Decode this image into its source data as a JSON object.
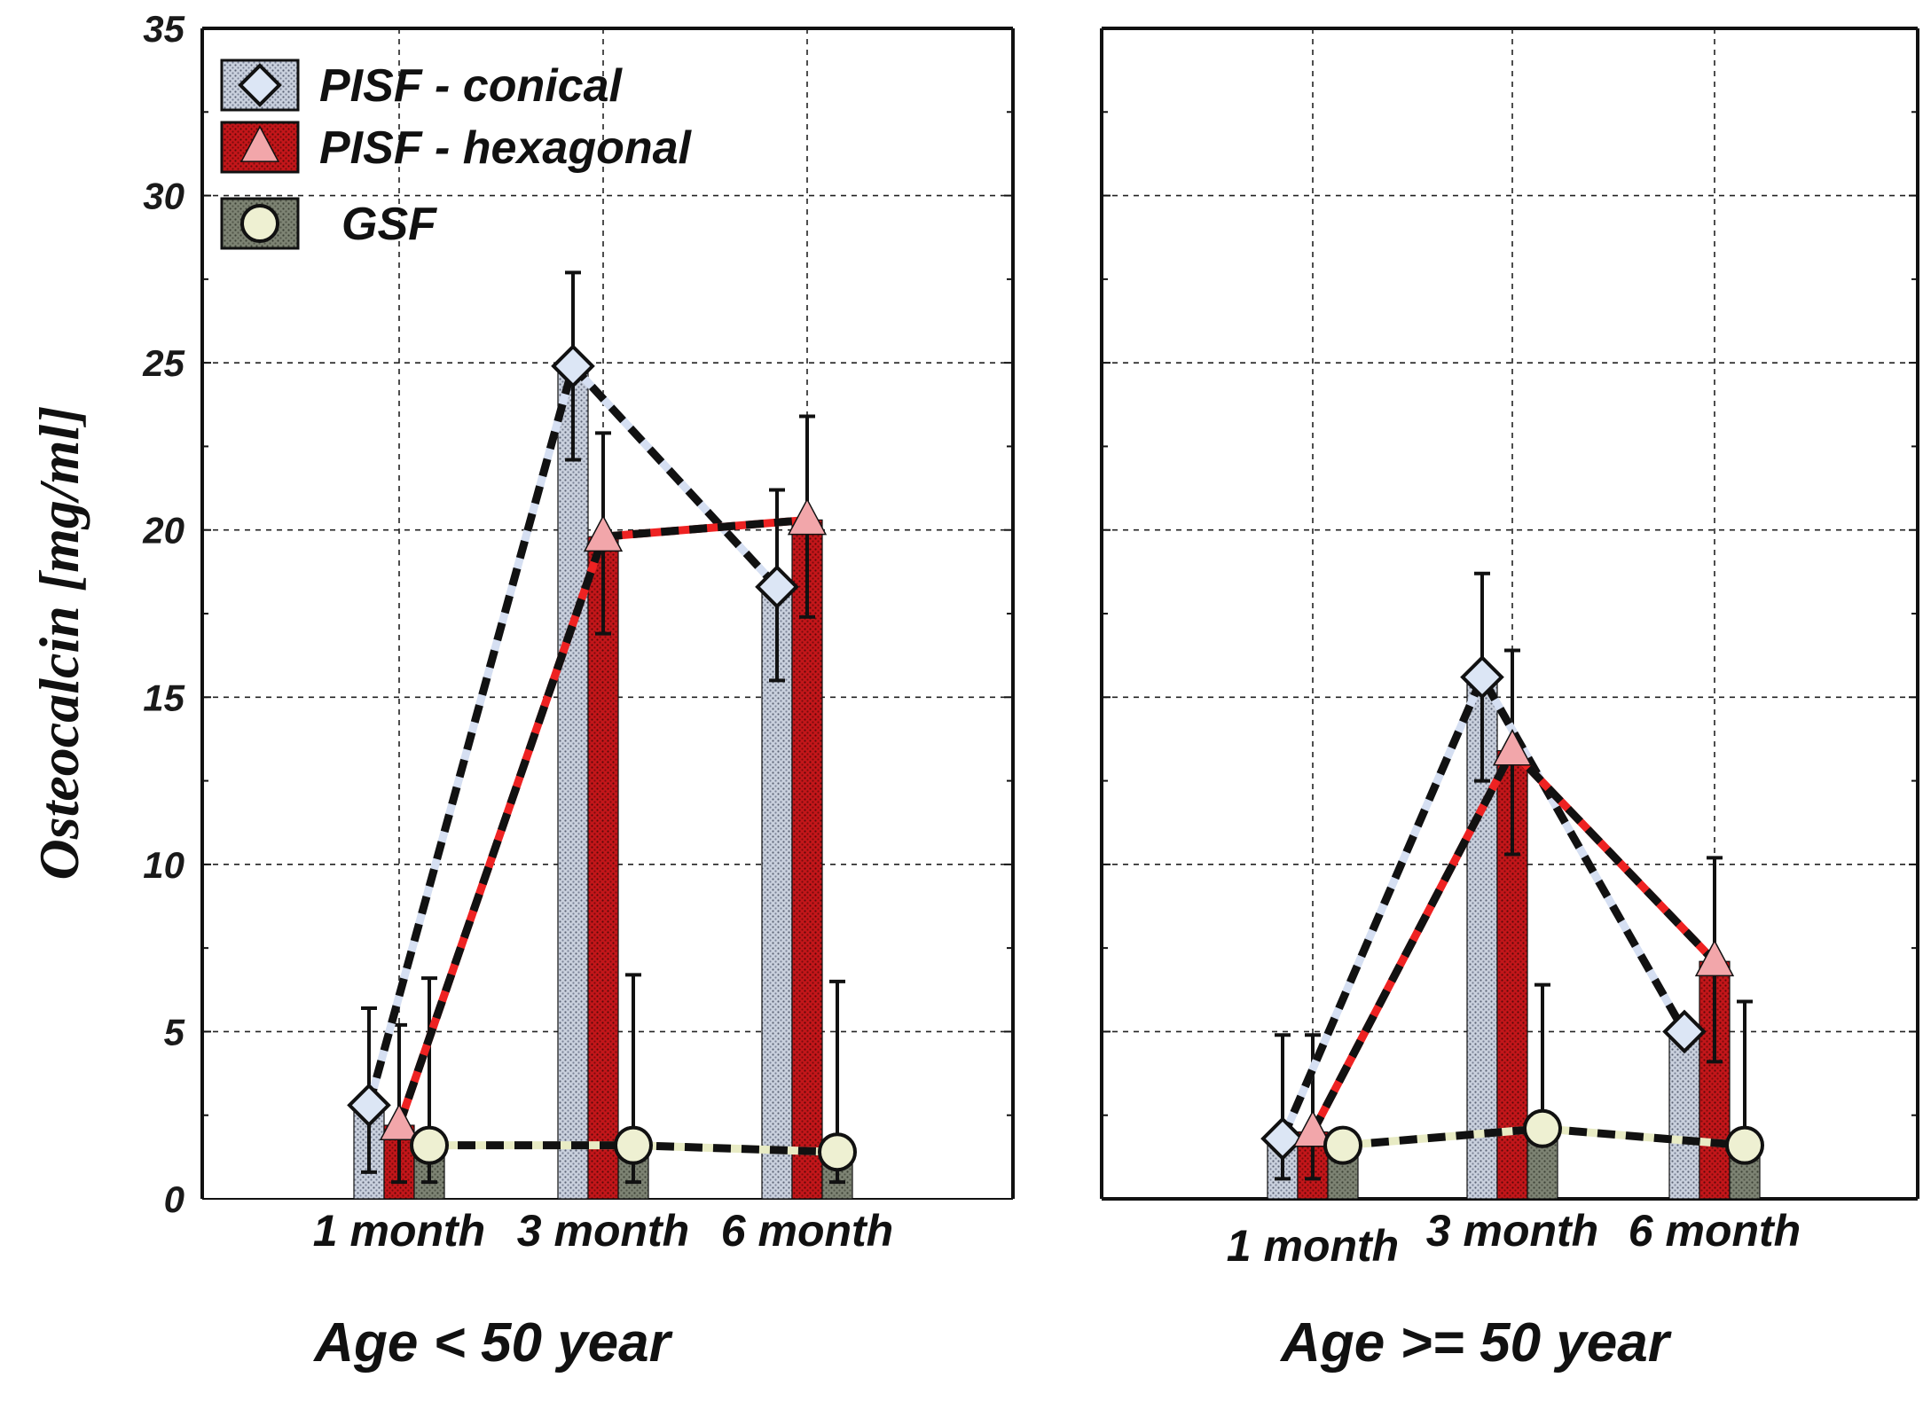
{
  "chart_data": {
    "type": "bar",
    "title": "",
    "ylabel": "Osteocalcin [mg/ml]",
    "xlabel": "",
    "ylim": [
      0,
      35
    ],
    "yticks": [
      0,
      5,
      10,
      15,
      20,
      25,
      30,
      35
    ],
    "categories": [
      "1 month",
      "3 month",
      "6 month"
    ],
    "legend": {
      "position": "top-left"
    },
    "series_meta": [
      {
        "name": "PISF - conical",
        "marker": "diamond",
        "bar_color": "#a9b3c7",
        "marker_color": "#dce6f5",
        "line_color": "#d5dff2"
      },
      {
        "name": "PISF - hexagonal",
        "marker": "triangle",
        "bar_color": "#b81d1d",
        "marker_color": "#f2a6aa",
        "line_color": "#ee2222"
      },
      {
        "name": "GSF",
        "marker": "circle",
        "bar_color": "#6f7566",
        "marker_color": "#eef0d2",
        "line_color": "#e8ebc4"
      }
    ],
    "panels": [
      {
        "group_label": "Age < 50 year",
        "category_labels": [
          "1 month",
          "3 month",
          "6 month"
        ],
        "series": [
          {
            "name": "PISF - conical",
            "values": [
              2.8,
              24.9,
              18.3
            ],
            "err_upper": [
              5.7,
              27.7,
              21.2
            ],
            "err_lower": [
              0.8,
              22.1,
              15.5
            ]
          },
          {
            "name": "PISF - hexagonal",
            "values": [
              2.2,
              19.8,
              20.3
            ],
            "err_upper": [
              5.2,
              22.9,
              23.4
            ],
            "err_lower": [
              0.5,
              16.9,
              17.4
            ]
          },
          {
            "name": "GSF",
            "values": [
              1.6,
              1.6,
              1.4
            ],
            "err_upper": [
              6.6,
              6.7,
              6.5
            ],
            "err_lower": [
              0.5,
              0.5,
              0.5
            ]
          }
        ]
      },
      {
        "group_label": "Age >= 50 year",
        "category_labels": [
          "1 month",
          "3 month",
          "6 month"
        ],
        "series": [
          {
            "name": "PISF - conical",
            "values": [
              1.8,
              15.6,
              5.0
            ],
            "err_upper": [
              4.9,
              18.7,
              5.0
            ],
            "err_lower": [
              0.6,
              12.5,
              5.0
            ]
          },
          {
            "name": "PISF - hexagonal",
            "values": [
              2.0,
              13.4,
              7.1
            ],
            "err_upper": [
              4.9,
              16.4,
              10.2
            ],
            "err_lower": [
              0.6,
              10.3,
              4.1
            ]
          },
          {
            "name": "GSF",
            "values": [
              1.6,
              2.1,
              1.6
            ],
            "err_upper": [
              1.6,
              6.4,
              5.9
            ],
            "err_lower": [
              1.6,
              2.1,
              1.6
            ]
          }
        ]
      }
    ]
  }
}
